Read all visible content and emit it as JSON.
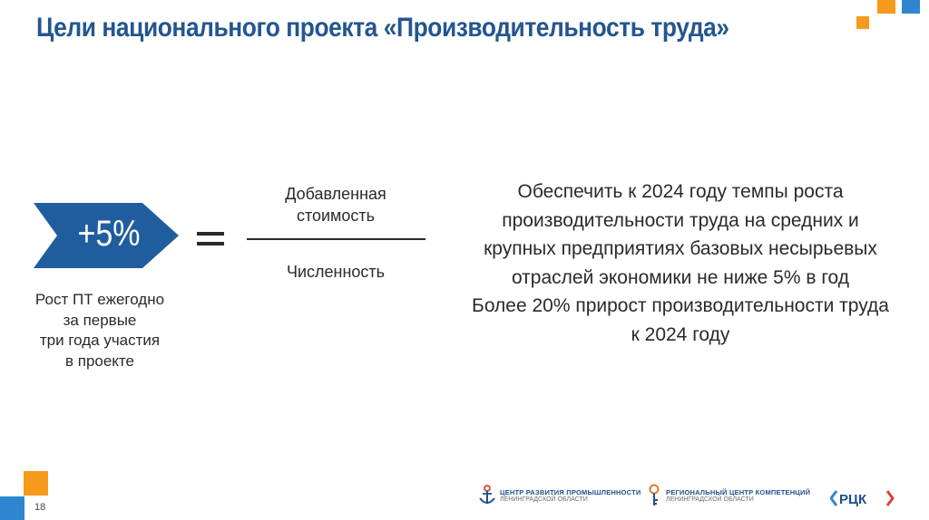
{
  "slide": {
    "title": "Цели национального проекта «Производительность труда»",
    "page_number": "18"
  },
  "badge": {
    "value": "+5%",
    "caption": [
      "Рост ПТ ежегодно",
      "за первые",
      "три года участия",
      "в проекте"
    ]
  },
  "formula": {
    "numerator": [
      "Добавленная",
      "стоимость"
    ],
    "denominator": "Численность"
  },
  "goal": {
    "lines": [
      "Обеспечить к 2024 году темпы роста",
      "производительности труда на средних и",
      "крупных предприятиях базовых несырьевых",
      "отраслей экономики не ниже 5% в год",
      "Более 20% прирост производительности труда",
      "к 2024 году"
    ]
  },
  "footer_logos": [
    {
      "main": "ЦЕНТР РАЗВИТИЯ ПРОМЫШЛЕННОСТИ",
      "sub": "ЛЕНИНГРАДСКОЙ ОБЛАСТИ",
      "icon": "anchor-icon"
    },
    {
      "main": "РЕГИОНАЛЬНЫЙ ЦЕНТР КОМПЕТЕНЦИЙ",
      "sub": "ЛЕНИНГРАДСКОЙ ОБЛАСТИ",
      "icon": "key-icon"
    },
    {
      "main": "«РЦК»",
      "icon": "rck-logo"
    }
  ],
  "colors": {
    "title": "#24568f",
    "arrow": "#1f5d9e",
    "accent_orange": "#f59a1d",
    "accent_blue": "#2e86d1"
  }
}
